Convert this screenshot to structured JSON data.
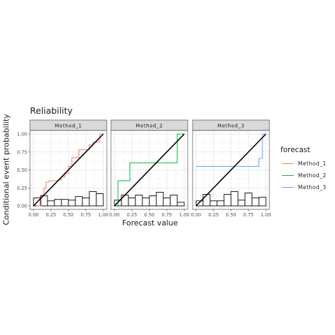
{
  "chart_data": {
    "type": "line",
    "title": "Reliability",
    "xlabel": "Forecast value",
    "ylabel": "Conditional event probability",
    "xlim": [
      0,
      1
    ],
    "ylim": [
      0,
      1
    ],
    "x_ticks": [
      "0.00",
      "0.25",
      "0.50",
      "0.75",
      "1.00"
    ],
    "y_ticks": [
      "0.00",
      "0.25",
      "0.50",
      "0.75",
      "1.00"
    ],
    "grid": true,
    "legend": {
      "title": "forecast",
      "placement": "right",
      "entries": [
        "Method_1",
        "Method_2",
        "Method_3"
      ],
      "colors": [
        "#F8766D",
        "#00BA38",
        "#619CFF"
      ]
    },
    "diagonal_color": "#000000",
    "histogram_bins": [
      0,
      0.1,
      0.2,
      0.3,
      0.4,
      0.5,
      0.6,
      0.7,
      0.8,
      0.9,
      1.0
    ],
    "panels": [
      {
        "strip": "Method_1",
        "color": "#F8766D",
        "step_x": [
          0.05,
          0.11,
          0.11,
          0.15,
          0.15,
          0.18,
          0.18,
          0.22,
          0.22,
          0.35,
          0.35,
          0.4,
          0.4,
          0.45,
          0.45,
          0.5,
          0.5,
          0.55,
          0.55,
          0.65,
          0.65,
          0.8,
          0.8,
          0.85,
          0.85,
          0.95,
          0.95,
          1.0
        ],
        "step_y": [
          0.0,
          0.0,
          0.15,
          0.15,
          0.25,
          0.25,
          0.33,
          0.33,
          0.35,
          0.35,
          0.36,
          0.36,
          0.4,
          0.4,
          0.45,
          0.45,
          0.55,
          0.55,
          0.67,
          0.67,
          0.78,
          0.78,
          0.85,
          0.85,
          0.89,
          0.89,
          1.0,
          1.0
        ],
        "hist_heights": [
          0.11,
          0.14,
          0.07,
          0.09,
          0.09,
          0.08,
          0.13,
          0.11,
          0.2,
          0.17
        ]
      },
      {
        "strip": "Method_2",
        "color": "#00BA38",
        "step_x": [
          0.05,
          0.05,
          0.22,
          0.22,
          0.9,
          0.9,
          1.0
        ],
        "step_y": [
          0.0,
          0.35,
          0.35,
          0.6,
          0.6,
          1.0,
          1.0
        ],
        "hist_heights": [
          0.08,
          0.15,
          0.11,
          0.15,
          0.11,
          0.14,
          0.19,
          0.11,
          0.15,
          0.05
        ]
      },
      {
        "strip": "Method_3",
        "color": "#619CFF",
        "step_x": [
          0.0,
          0.9,
          0.9,
          0.95,
          0.95,
          1.0
        ],
        "step_y": [
          0.55,
          0.55,
          0.66,
          0.66,
          1.0,
          1.0
        ],
        "hist_heights": [
          0.07,
          0.16,
          0.07,
          0.07,
          0.16,
          0.2,
          0.08,
          0.18,
          0.11,
          0.12
        ]
      }
    ]
  }
}
